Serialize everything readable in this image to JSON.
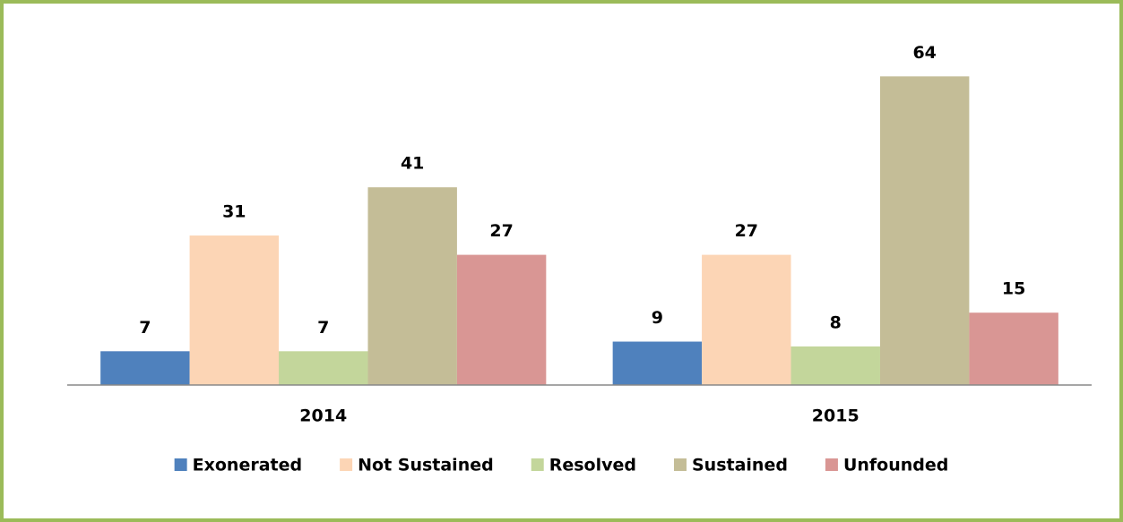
{
  "chart_data": {
    "type": "bar",
    "categories": [
      "2014",
      "2015"
    ],
    "series": [
      {
        "name": "Exonerated",
        "color": "#4f81bd",
        "values": [
          7,
          9
        ]
      },
      {
        "name": "Not Sustained",
        "color": "#fcd5b5",
        "values": [
          31,
          27
        ]
      },
      {
        "name": "Resolved",
        "color": "#c3d69b",
        "values": [
          7,
          8
        ]
      },
      {
        "name": "Sustained",
        "color": "#c4bd97",
        "values": [
          41,
          64
        ]
      },
      {
        "name": "Unfounded",
        "color": "#d99694",
        "values": [
          27,
          15
        ]
      }
    ],
    "ylim": [
      0,
      70
    ],
    "legend": "bottom"
  }
}
